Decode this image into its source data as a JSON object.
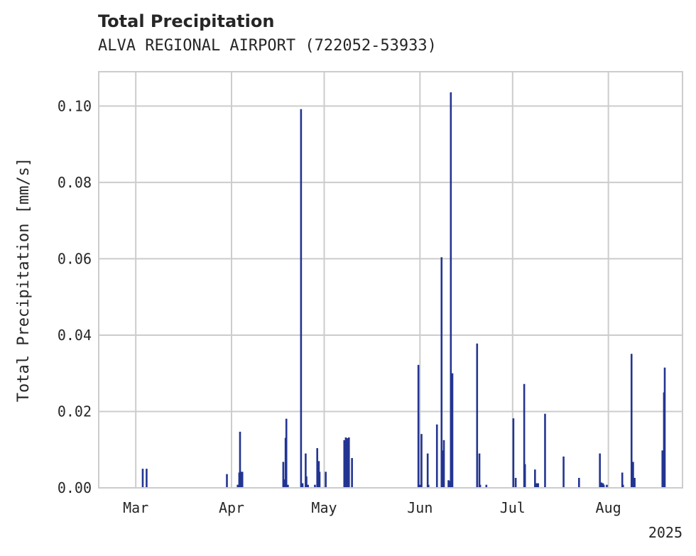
{
  "chart_data": {
    "type": "bar",
    "title": "Total Precipitation",
    "subtitle": "ALVA REGIONAL AIRPORT (722052-53933)",
    "xlabel": "",
    "ylabel": "Total Precipitation [mm/s]",
    "year_label": "2025",
    "xlim": [
      "2025-02-17",
      "2025-08-25"
    ],
    "ylim": [
      0,
      0.109
    ],
    "grid": true,
    "legend": "none",
    "bar_color": "#233592",
    "x_ticks": [
      {
        "date": "2025-03-01",
        "label": "Mar"
      },
      {
        "date": "2025-04-01",
        "label": "Apr"
      },
      {
        "date": "2025-05-01",
        "label": "May"
      },
      {
        "date": "2025-06-01",
        "label": "Jun"
      },
      {
        "date": "2025-07-01",
        "label": "Jul"
      },
      {
        "date": "2025-08-01",
        "label": "Aug"
      }
    ],
    "y_ticks": [
      {
        "value": 0.0,
        "label": "0.00"
      },
      {
        "value": 0.02,
        "label": "0.02"
      },
      {
        "value": 0.04,
        "label": "0.04"
      },
      {
        "value": 0.06,
        "label": "0.06"
      },
      {
        "value": 0.08,
        "label": "0.08"
      },
      {
        "value": 0.1,
        "label": "0.10"
      }
    ],
    "points": [
      [
        "2025-03-03T06:00",
        0.005
      ],
      [
        "2025-03-04T12:00",
        0.005
      ],
      [
        "2025-03-30T12:00",
        0.0036
      ],
      [
        "2025-04-03T00:00",
        0.0008
      ],
      [
        "2025-04-03T12:00",
        0.004
      ],
      [
        "2025-04-03T18:00",
        0.0147
      ],
      [
        "2025-04-04T06:00",
        0.0042
      ],
      [
        "2025-04-04T12:00",
        0.0042
      ],
      [
        "2025-04-17T18:00",
        0.0068
      ],
      [
        "2025-04-18T06:00",
        0.0022
      ],
      [
        "2025-04-18T12:00",
        0.0131
      ],
      [
        "2025-04-18T18:00",
        0.0181
      ],
      [
        "2025-04-19T06:00",
        0.0008
      ],
      [
        "2025-04-23T12:00",
        0.0992
      ],
      [
        "2025-04-24T00:00",
        0.0012
      ],
      [
        "2025-04-25T00:00",
        0.009
      ],
      [
        "2025-04-25T06:00",
        0.003
      ],
      [
        "2025-04-25T18:00",
        0.0008
      ],
      [
        "2025-04-28T00:00",
        0.0008
      ],
      [
        "2025-04-28T18:00",
        0.0104
      ],
      [
        "2025-04-29T06:00",
        0.007
      ],
      [
        "2025-04-29T12:00",
        0.0042
      ],
      [
        "2025-05-01T12:00",
        0.0042
      ],
      [
        "2025-05-07T12:00",
        0.0125
      ],
      [
        "2025-05-08T00:00",
        0.0132
      ],
      [
        "2025-05-08T12:00",
        0.013
      ],
      [
        "2025-05-09T00:00",
        0.0132
      ],
      [
        "2025-05-10T00:00",
        0.0078
      ],
      [
        "2025-05-31T12:00",
        0.0322
      ],
      [
        "2025-06-01T00:00",
        0.0008
      ],
      [
        "2025-06-01T12:00",
        0.0141
      ],
      [
        "2025-06-03T12:00",
        0.009
      ],
      [
        "2025-06-03T18:00",
        0.0008
      ],
      [
        "2025-06-06T12:00",
        0.0166
      ],
      [
        "2025-06-08T00:00",
        0.0604
      ],
      [
        "2025-06-08T12:00",
        0.0098
      ],
      [
        "2025-06-08T18:00",
        0.0125
      ],
      [
        "2025-06-10T06:00",
        0.002
      ],
      [
        "2025-06-10T12:00",
        0.0018
      ],
      [
        "2025-06-11T00:00",
        0.1036
      ],
      [
        "2025-06-11T12:00",
        0.03
      ],
      [
        "2025-06-19T12:00",
        0.0378
      ],
      [
        "2025-06-20T06:00",
        0.009
      ],
      [
        "2025-06-20T12:00",
        0.0008
      ],
      [
        "2025-06-22T12:00",
        0.0008
      ],
      [
        "2025-07-01T06:00",
        0.0182
      ],
      [
        "2025-07-02T00:00",
        0.0026
      ],
      [
        "2025-07-04T18:00",
        0.0272
      ],
      [
        "2025-07-05T00:00",
        0.0062
      ],
      [
        "2025-07-08T06:00",
        0.0048
      ],
      [
        "2025-07-08T18:00",
        0.0012
      ],
      [
        "2025-07-09T06:00",
        0.0012
      ],
      [
        "2025-07-11T12:00",
        0.0194
      ],
      [
        "2025-07-17T12:00",
        0.0082
      ],
      [
        "2025-07-22T12:00",
        0.0026
      ],
      [
        "2025-07-29T06:00",
        0.009
      ],
      [
        "2025-07-29T18:00",
        0.0014
      ],
      [
        "2025-07-30T06:00",
        0.0012
      ],
      [
        "2025-07-30T12:00",
        0.0008
      ],
      [
        "2025-07-31T12:00",
        0.0008
      ],
      [
        "2025-08-05T12:00",
        0.004
      ],
      [
        "2025-08-05T18:00",
        0.0008
      ],
      [
        "2025-08-08T12:00",
        0.0351
      ],
      [
        "2025-08-09T00:00",
        0.0068
      ],
      [
        "2025-08-09T06:00",
        0.0026
      ],
      [
        "2025-08-09T12:00",
        0.0026
      ],
      [
        "2025-08-18T12:00",
        0.0098
      ],
      [
        "2025-08-19T00:00",
        0.025
      ],
      [
        "2025-08-19T06:00",
        0.0315
      ]
    ]
  }
}
